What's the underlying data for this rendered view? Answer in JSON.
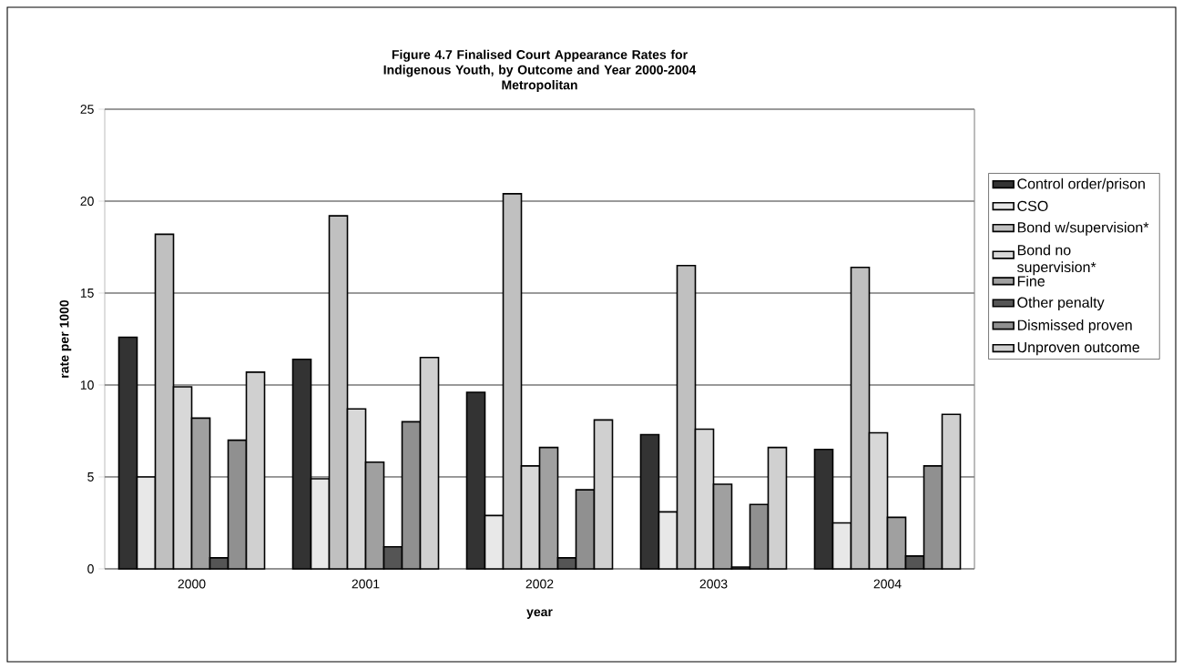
{
  "chart_data": {
    "type": "bar",
    "title": "Figure 4.7 Finalised Court Appearance Rates for Indigenous Youth, by Outcome and Year 2000-2004",
    "subtitle": "Metropolitan",
    "xlabel": "year",
    "ylabel": "rate per 1000",
    "categories": [
      "2000",
      "2001",
      "2002",
      "2003",
      "2004"
    ],
    "series": [
      {
        "name": "Control order/prison",
        "color": "#333333",
        "values": [
          12.6,
          11.4,
          9.6,
          7.3,
          6.5
        ]
      },
      {
        "name": "CSO",
        "color": "#e8e8e8",
        "values": [
          5.0,
          4.9,
          2.9,
          3.1,
          2.5
        ]
      },
      {
        "name": "Bond w/supervision*",
        "color": "#c0c0c0",
        "values": [
          18.2,
          19.2,
          20.4,
          16.5,
          16.4
        ]
      },
      {
        "name": "Bond no supervision*",
        "color": "#d8d8d8",
        "values": [
          9.9,
          8.7,
          5.6,
          7.6,
          7.4
        ]
      },
      {
        "name": "Fine",
        "color": "#a0a0a0",
        "values": [
          8.2,
          5.8,
          6.6,
          4.6,
          2.8
        ]
      },
      {
        "name": "Other penalty",
        "color": "#555555",
        "values": [
          0.6,
          1.2,
          0.6,
          0.1,
          0.7
        ]
      },
      {
        "name": "Dismissed proven",
        "color": "#909090",
        "values": [
          7.0,
          8.0,
          4.3,
          3.5,
          5.6
        ]
      },
      {
        "name": "Unproven outcome",
        "color": "#d0d0d0",
        "values": [
          10.7,
          11.5,
          8.1,
          6.6,
          8.4
        ]
      }
    ],
    "ylim": [
      0,
      25
    ],
    "yticks": [
      0,
      5,
      10,
      15,
      20,
      25
    ],
    "grid": "y",
    "legend": "right"
  }
}
